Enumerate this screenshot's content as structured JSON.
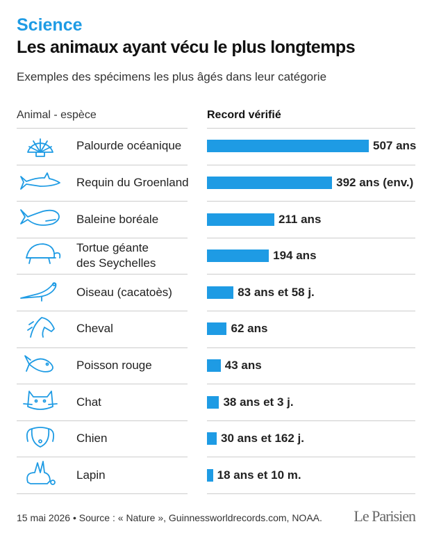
{
  "header": {
    "section": "Science",
    "title": "Les animaux ayant vécu le plus longtemps",
    "subtitle": "Exemples des spécimens les plus âgés dans leur catégorie"
  },
  "chart_data": {
    "type": "bar",
    "column_headers": [
      "Animal - espèce",
      "Record vérifié"
    ],
    "categories": [
      "Palourde océanique",
      "Requin du Groenland",
      "Baleine boréale",
      "Tortue géante\ndes Seychelles",
      "Oiseau (cacatoès)",
      "Cheval",
      "Poisson rouge",
      "Chat",
      "Chien",
      "Lapin"
    ],
    "values": [
      507,
      392,
      211,
      194,
      83.16,
      62,
      43,
      38.01,
      30.44,
      18.83
    ],
    "value_labels": [
      "507 ans",
      "392 ans (env.)",
      "211 ans",
      "194 ans",
      "83 ans et 58 j.",
      "62 ans",
      "43 ans",
      "38 ans et 3 j.",
      "30 ans et 162 j.",
      "18 ans et 10 m."
    ],
    "color": "#1e9be4"
  },
  "footer": {
    "source": "15 mai 2026 • Source : « Nature », Guinnessworldrecords.com, NOAA.",
    "logo": "Le Parisien"
  }
}
